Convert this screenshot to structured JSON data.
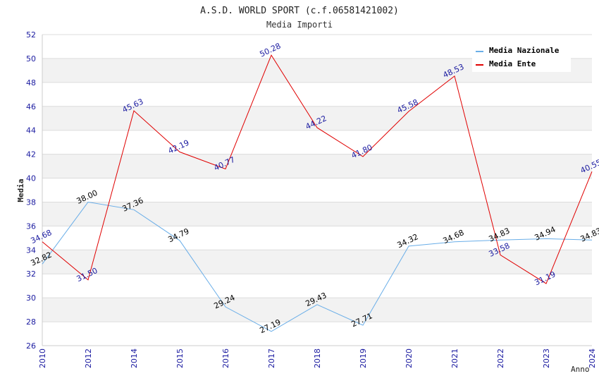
{
  "chart_data": {
    "type": "line",
    "title": "A.S.D. WORLD SPORT (c.f.06581421002)",
    "subtitle": "Media Importi",
    "xlabel": "Anno",
    "ylabel": "Media",
    "ylim": [
      26,
      52
    ],
    "yticks": [
      "26",
      "28",
      "30",
      "32",
      "34",
      "36",
      "38",
      "40",
      "42",
      "44",
      "46",
      "48",
      "50",
      "52"
    ],
    "categories": [
      "2010",
      "2012",
      "2014",
      "2015",
      "2016",
      "2017",
      "2018",
      "2019",
      "2020",
      "2021",
      "2022",
      "2023",
      "2024"
    ],
    "grid": true,
    "legend_position": "top-right",
    "series": [
      {
        "name": "Media Nazionale",
        "color": "#6aaee8",
        "label_color": "#000000",
        "values": [
          32.82,
          38.0,
          37.36,
          34.79,
          29.24,
          27.19,
          29.43,
          27.71,
          34.32,
          34.68,
          34.83,
          34.94,
          34.83
        ],
        "labels": [
          "32.82",
          "38.00",
          "37.36",
          "34.79",
          "29.24",
          "27.19",
          "29.43",
          "27.71",
          "34.32",
          "34.68",
          "34.83",
          "34.94",
          "34.83"
        ]
      },
      {
        "name": "Media Ente",
        "color": "#e00000",
        "label_color": "#1a1aa0",
        "values": [
          34.68,
          31.5,
          45.63,
          42.19,
          40.77,
          50.28,
          44.22,
          41.8,
          45.58,
          48.53,
          33.58,
          31.19,
          40.55
        ],
        "labels": [
          "34.68",
          "31.50",
          "45.63",
          "42.19",
          "40.77",
          "50.28",
          "44.22",
          "41.80",
          "45.58",
          "48.53",
          "33.58",
          "31.19",
          "40.55"
        ]
      }
    ]
  }
}
